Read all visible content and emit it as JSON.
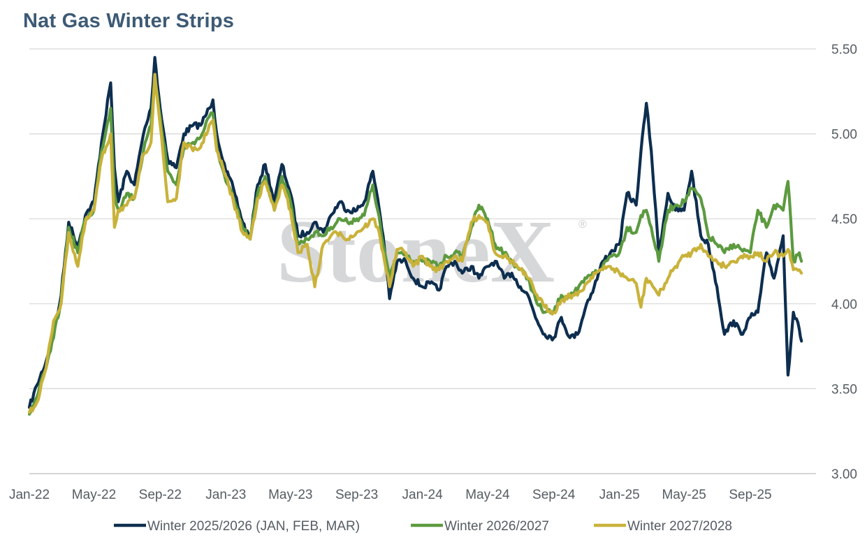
{
  "chart_data": {
    "type": "line",
    "title": "Nat Gas Winter Strips",
    "watermark": "StoneX",
    "watermark_mark": "®",
    "xlabel": "",
    "ylabel": "",
    "ylim": [
      3.0,
      5.5
    ],
    "xlim": [
      "2022-01",
      "2026-01"
    ],
    "grid": true,
    "y_axis_position": "right",
    "legend_position": "bottom",
    "y_ticks": [
      "3.00",
      "3.50",
      "4.00",
      "4.50",
      "5.00",
      "5.50"
    ],
    "x_ticks": [
      "Jan-22",
      "May-22",
      "Sep-22",
      "Jan-23",
      "May-23",
      "Sep-23",
      "Jan-24",
      "May-24",
      "Sep-24",
      "Jan-25",
      "May-25",
      "Sep-25"
    ],
    "x_tick_dates": [
      "2022-01",
      "2022-05",
      "2022-09",
      "2023-01",
      "2023-05",
      "2023-09",
      "2024-01",
      "2024-05",
      "2024-09",
      "2025-01",
      "2025-05",
      "2025-09"
    ],
    "series": [
      {
        "name": "Winter 2025/2026 (JAN, FEB, MAR)",
        "color": "#0d2e4f",
        "x": [
          "2022-01-01",
          "2022-01-15",
          "2022-02-01",
          "2022-02-15",
          "2022-03-01",
          "2022-03-15",
          "2022-04-01",
          "2022-04-15",
          "2022-05-01",
          "2022-05-15",
          "2022-06-01",
          "2022-06-08",
          "2022-06-15",
          "2022-07-01",
          "2022-07-15",
          "2022-08-01",
          "2022-08-15",
          "2022-08-22",
          "2022-09-01",
          "2022-09-15",
          "2022-10-01",
          "2022-10-15",
          "2022-11-01",
          "2022-11-15",
          "2022-12-01",
          "2022-12-08",
          "2022-12-15",
          "2023-01-01",
          "2023-01-15",
          "2023-02-01",
          "2023-02-15",
          "2023-03-01",
          "2023-03-15",
          "2023-04-01",
          "2023-04-15",
          "2023-05-01",
          "2023-05-15",
          "2023-06-01",
          "2023-06-15",
          "2023-07-01",
          "2023-07-15",
          "2023-08-01",
          "2023-08-15",
          "2023-09-01",
          "2023-09-15",
          "2023-10-01",
          "2023-10-10",
          "2023-10-20",
          "2023-11-01",
          "2023-11-15",
          "2023-12-01",
          "2023-12-15",
          "2024-01-01",
          "2024-01-15",
          "2024-02-01",
          "2024-02-15",
          "2024-03-01",
          "2024-03-15",
          "2024-04-01",
          "2024-04-15",
          "2024-05-01",
          "2024-05-15",
          "2024-06-01",
          "2024-06-15",
          "2024-07-01",
          "2024-07-15",
          "2024-08-01",
          "2024-08-15",
          "2024-09-01",
          "2024-09-15",
          "2024-10-01",
          "2024-10-15",
          "2024-11-01",
          "2024-11-15",
          "2024-12-01",
          "2024-12-15",
          "2025-01-01",
          "2025-01-15",
          "2025-02-01",
          "2025-02-10",
          "2025-02-20",
          "2025-03-01",
          "2025-03-15",
          "2025-04-01",
          "2025-04-15",
          "2025-05-01",
          "2025-05-15",
          "2025-06-01",
          "2025-06-15",
          "2025-07-01",
          "2025-07-15",
          "2025-08-01",
          "2025-08-15",
          "2025-09-01",
          "2025-09-15",
          "2025-10-01",
          "2025-10-15",
          "2025-11-01",
          "2025-11-10",
          "2025-11-20",
          "2025-12-01",
          "2025-12-05"
        ],
        "y": [
          3.39,
          3.52,
          3.66,
          3.82,
          4.05,
          4.48,
          4.34,
          4.52,
          4.6,
          4.95,
          5.3,
          4.8,
          4.6,
          4.78,
          4.7,
          5.0,
          5.15,
          5.45,
          5.15,
          4.85,
          4.8,
          5.0,
          5.05,
          5.05,
          5.15,
          5.2,
          5.0,
          4.78,
          4.68,
          4.48,
          4.38,
          4.7,
          4.82,
          4.6,
          4.82,
          4.65,
          4.4,
          4.42,
          4.48,
          4.42,
          4.52,
          4.6,
          4.55,
          4.55,
          4.6,
          4.78,
          4.62,
          4.4,
          4.03,
          4.25,
          4.25,
          4.15,
          4.1,
          4.12,
          4.08,
          4.22,
          4.25,
          4.18,
          4.22,
          4.15,
          4.22,
          4.25,
          4.15,
          4.18,
          4.1,
          4.05,
          3.9,
          3.82,
          3.8,
          3.92,
          3.8,
          3.82,
          4.0,
          4.1,
          4.25,
          4.3,
          4.35,
          4.65,
          4.58,
          4.9,
          5.18,
          4.9,
          4.3,
          4.65,
          4.55,
          4.55,
          4.78,
          4.4,
          4.35,
          4.1,
          3.82,
          3.9,
          3.82,
          3.92,
          3.95,
          4.3,
          4.15,
          4.4,
          3.58,
          3.95,
          3.85,
          3.78
        ]
      },
      {
        "name": "Winter 2026/2027",
        "color": "#5c9a3f",
        "x": [
          "2022-01-01",
          "2022-01-15",
          "2022-02-01",
          "2022-02-15",
          "2022-03-01",
          "2022-03-15",
          "2022-04-01",
          "2022-04-15",
          "2022-05-01",
          "2022-05-15",
          "2022-06-01",
          "2022-06-08",
          "2022-06-15",
          "2022-07-01",
          "2022-07-15",
          "2022-08-01",
          "2022-08-15",
          "2022-08-22",
          "2022-09-01",
          "2022-09-15",
          "2022-10-01",
          "2022-10-15",
          "2022-11-01",
          "2022-11-15",
          "2022-12-01",
          "2022-12-08",
          "2022-12-15",
          "2023-01-01",
          "2023-01-15",
          "2023-02-01",
          "2023-02-15",
          "2023-03-01",
          "2023-03-15",
          "2023-04-01",
          "2023-04-15",
          "2023-05-01",
          "2023-05-15",
          "2023-06-01",
          "2023-06-15",
          "2023-07-01",
          "2023-07-15",
          "2023-08-01",
          "2023-08-15",
          "2023-09-01",
          "2023-09-15",
          "2023-10-01",
          "2023-10-10",
          "2023-10-20",
          "2023-11-01",
          "2023-11-15",
          "2023-12-01",
          "2023-12-15",
          "2024-01-01",
          "2024-01-15",
          "2024-02-01",
          "2024-02-15",
          "2024-03-01",
          "2024-03-15",
          "2024-04-01",
          "2024-04-15",
          "2024-05-01",
          "2024-05-15",
          "2024-06-01",
          "2024-06-15",
          "2024-07-01",
          "2024-07-15",
          "2024-08-01",
          "2024-08-15",
          "2024-09-01",
          "2024-09-15",
          "2024-10-01",
          "2024-10-15",
          "2024-11-01",
          "2024-11-15",
          "2024-12-01",
          "2024-12-15",
          "2025-01-01",
          "2025-01-15",
          "2025-02-01",
          "2025-02-10",
          "2025-02-20",
          "2025-03-01",
          "2025-03-15",
          "2025-04-01",
          "2025-04-15",
          "2025-05-01",
          "2025-05-15",
          "2025-06-01",
          "2025-06-15",
          "2025-07-01",
          "2025-07-15",
          "2025-08-01",
          "2025-08-15",
          "2025-09-01",
          "2025-09-15",
          "2025-10-01",
          "2025-10-15",
          "2025-11-01",
          "2025-11-10",
          "2025-11-20",
          "2025-12-01",
          "2025-12-05"
        ],
        "y": [
          3.35,
          3.45,
          3.62,
          3.8,
          4.02,
          4.45,
          4.3,
          4.5,
          4.55,
          4.9,
          5.15,
          4.65,
          4.55,
          4.65,
          4.62,
          4.9,
          5.05,
          5.35,
          5.1,
          4.78,
          4.7,
          4.92,
          4.95,
          4.98,
          5.1,
          5.12,
          4.92,
          4.72,
          4.62,
          4.45,
          4.38,
          4.65,
          4.75,
          4.55,
          4.75,
          4.6,
          4.35,
          4.38,
          4.42,
          4.4,
          4.45,
          4.5,
          4.48,
          4.5,
          4.52,
          4.7,
          4.55,
          4.35,
          4.15,
          4.3,
          4.3,
          4.25,
          4.25,
          4.25,
          4.22,
          4.28,
          4.3,
          4.28,
          4.45,
          4.58,
          4.5,
          4.35,
          4.3,
          4.25,
          4.2,
          4.15,
          4.0,
          3.95,
          3.95,
          4.05,
          4.05,
          4.08,
          4.15,
          4.18,
          4.22,
          4.28,
          4.3,
          4.45,
          4.42,
          4.52,
          4.55,
          4.45,
          4.25,
          4.55,
          4.58,
          4.6,
          4.68,
          4.62,
          4.4,
          4.35,
          4.3,
          4.35,
          4.32,
          4.3,
          4.55,
          4.45,
          4.58,
          4.55,
          4.72,
          4.25,
          4.3,
          4.25
        ]
      },
      {
        "name": "Winter 2027/2028",
        "color": "#c9b23a",
        "x": [
          "2022-01-01",
          "2022-01-15",
          "2022-02-01",
          "2022-02-15",
          "2022-03-01",
          "2022-03-15",
          "2022-04-01",
          "2022-04-15",
          "2022-05-01",
          "2022-05-15",
          "2022-06-01",
          "2022-06-08",
          "2022-06-15",
          "2022-07-01",
          "2022-07-15",
          "2022-08-01",
          "2022-08-15",
          "2022-08-22",
          "2022-09-01",
          "2022-09-15",
          "2022-10-01",
          "2022-10-15",
          "2022-11-01",
          "2022-11-15",
          "2022-12-01",
          "2022-12-08",
          "2022-12-15",
          "2023-01-01",
          "2023-01-15",
          "2023-02-01",
          "2023-02-15",
          "2023-03-01",
          "2023-03-15",
          "2023-04-01",
          "2023-04-15",
          "2023-05-01",
          "2023-05-15",
          "2023-06-01",
          "2023-06-15",
          "2023-07-01",
          "2023-07-15",
          "2023-08-01",
          "2023-08-15",
          "2023-09-01",
          "2023-09-15",
          "2023-10-01",
          "2023-10-10",
          "2023-10-20",
          "2023-11-01",
          "2023-11-15",
          "2023-12-01",
          "2023-12-15",
          "2024-01-01",
          "2024-01-15",
          "2024-02-01",
          "2024-02-15",
          "2024-03-01",
          "2024-03-15",
          "2024-04-01",
          "2024-04-15",
          "2024-05-01",
          "2024-05-15",
          "2024-06-01",
          "2024-06-15",
          "2024-07-01",
          "2024-07-15",
          "2024-08-01",
          "2024-08-15",
          "2024-09-01",
          "2024-09-15",
          "2024-10-01",
          "2024-10-15",
          "2024-11-01",
          "2024-11-15",
          "2024-12-01",
          "2024-12-15",
          "2025-01-01",
          "2025-01-15",
          "2025-02-01",
          "2025-02-10",
          "2025-02-20",
          "2025-03-01",
          "2025-03-15",
          "2025-04-01",
          "2025-04-15",
          "2025-05-01",
          "2025-05-15",
          "2025-06-01",
          "2025-06-15",
          "2025-07-01",
          "2025-07-15",
          "2025-08-01",
          "2025-08-15",
          "2025-09-01",
          "2025-09-15",
          "2025-10-01",
          "2025-10-15",
          "2025-11-01",
          "2025-11-10",
          "2025-11-20",
          "2025-12-01",
          "2025-12-05"
        ],
        "y": [
          3.36,
          3.42,
          3.62,
          3.9,
          4.0,
          4.42,
          4.22,
          4.48,
          4.55,
          4.85,
          5.0,
          4.45,
          4.55,
          4.58,
          4.62,
          4.88,
          4.95,
          5.35,
          5.05,
          4.6,
          4.62,
          4.95,
          4.9,
          4.92,
          5.05,
          5.08,
          4.9,
          4.75,
          4.6,
          4.42,
          4.38,
          4.62,
          4.72,
          4.55,
          4.7,
          4.55,
          4.3,
          4.35,
          4.1,
          4.35,
          4.4,
          4.42,
          4.38,
          4.42,
          4.45,
          4.5,
          4.45,
          4.3,
          4.1,
          4.32,
          4.3,
          4.22,
          4.28,
          4.22,
          4.2,
          4.25,
          4.28,
          4.25,
          4.48,
          4.52,
          4.48,
          4.3,
          4.28,
          4.25,
          4.2,
          4.15,
          4.05,
          3.98,
          3.95,
          4.02,
          4.05,
          4.05,
          4.12,
          4.18,
          4.2,
          4.22,
          4.18,
          4.15,
          4.12,
          3.98,
          4.15,
          4.12,
          4.05,
          4.15,
          4.22,
          4.28,
          4.3,
          4.35,
          4.28,
          4.25,
          4.22,
          4.25,
          4.28,
          4.28,
          4.3,
          4.25,
          4.3,
          4.28,
          4.32,
          4.2,
          4.2,
          4.18
        ]
      }
    ]
  }
}
